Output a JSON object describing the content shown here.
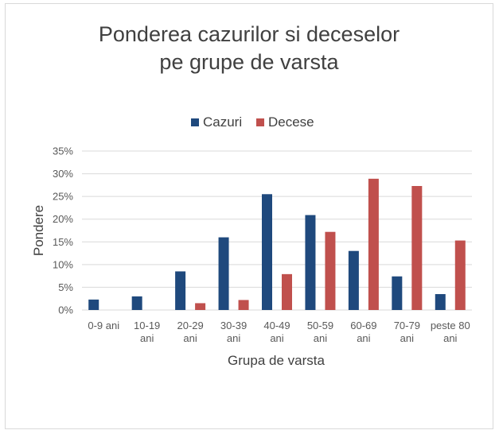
{
  "chart_data": {
    "type": "bar",
    "title_lines": [
      "Ponderea cazurilor si deceselor",
      "pe grupe de varsta"
    ],
    "xlabel": "Grupa de varsta",
    "ylabel": "Pondere",
    "categories": [
      [
        "0-9 ani"
      ],
      [
        "10-19",
        "ani"
      ],
      [
        "20-29",
        "ani"
      ],
      [
        "30-39",
        "ani"
      ],
      [
        "40-49",
        "ani"
      ],
      [
        "50-59",
        "ani"
      ],
      [
        "60-69",
        "ani"
      ],
      [
        "70-79",
        "ani"
      ],
      [
        "peste 80",
        "ani"
      ]
    ],
    "series": [
      {
        "name": "Cazuri",
        "color": "#1f497d",
        "values": [
          2.3,
          3.0,
          8.5,
          16.0,
          25.5,
          20.9,
          13.0,
          7.4,
          3.5
        ]
      },
      {
        "name": "Decese",
        "color": "#c0504d",
        "values": [
          0,
          0,
          1.5,
          2.2,
          7.9,
          17.2,
          28.9,
          27.3,
          15.3
        ]
      }
    ],
    "yticks": [
      "0%",
      "5%",
      "10%",
      "15%",
      "20%",
      "25%",
      "30%",
      "35%"
    ],
    "ylim": [
      0,
      35
    ],
    "ystep": 5,
    "grid": true,
    "legend_position": "top-center"
  }
}
